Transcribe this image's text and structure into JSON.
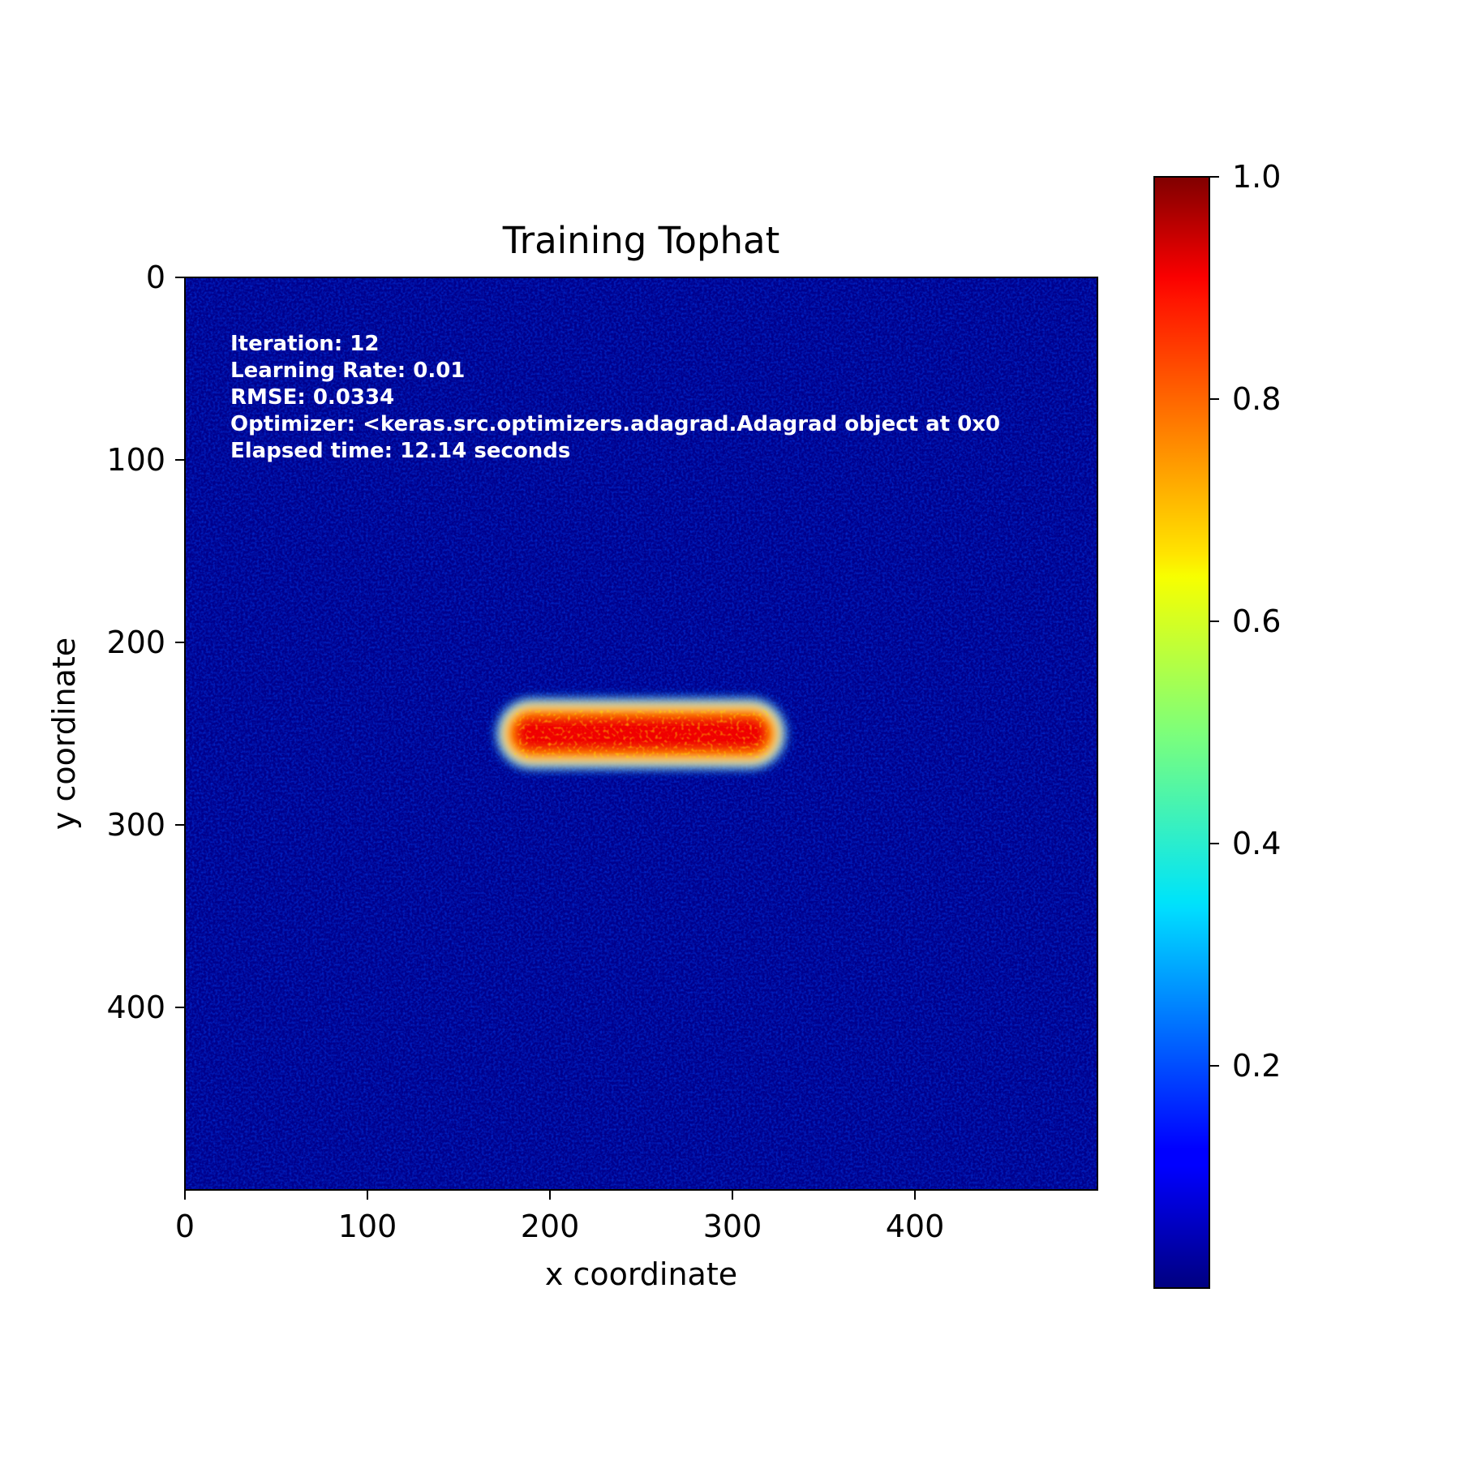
{
  "chart_data": {
    "type": "heatmap",
    "title": "Training Tophat",
    "xlabel": "x coordinate",
    "ylabel": "y coordinate",
    "xlim": [
      0,
      500
    ],
    "ylim": [
      500,
      0
    ],
    "x_ticks": [
      0,
      100,
      200,
      300,
      400
    ],
    "y_ticks": [
      0,
      100,
      200,
      300,
      400
    ],
    "colormap": "jet",
    "colorbar": {
      "range": [
        0,
        1.0
      ],
      "ticks": [
        0.2,
        0.4,
        0.6,
        0.8,
        1.0
      ],
      "tick_labels": [
        "0.2",
        "0.4",
        "0.6",
        "0.8",
        "1.0"
      ]
    },
    "background_value": 0.03,
    "tophat": {
      "x_range": [
        175,
        325
      ],
      "y_range": [
        235,
        265
      ],
      "peak_value": 0.92
    },
    "annotation_lines": [
      "Iteration: 12",
      "Learning Rate: 0.01",
      "RMSE: 0.0334",
      "Optimizer: <keras.src.optimizers.adagrad.Adagrad object at 0x0",
      "Elapsed time: 12.14 seconds"
    ],
    "grid": false
  }
}
